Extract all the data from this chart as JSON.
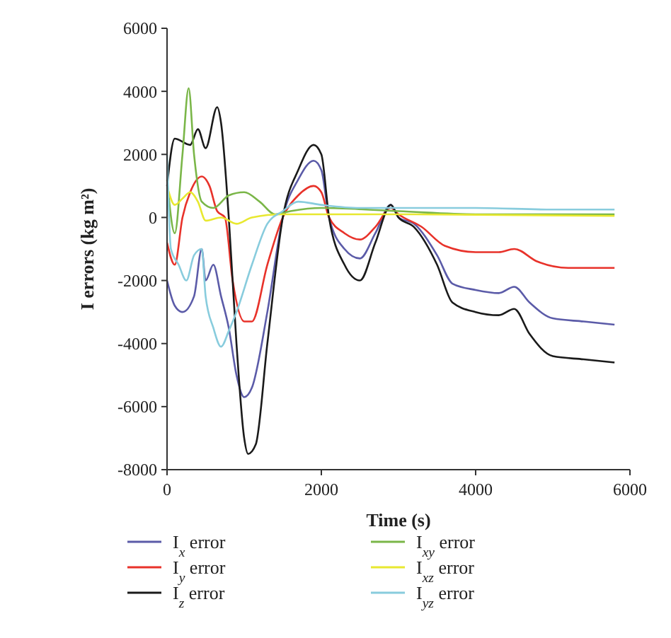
{
  "chart_data": {
    "type": "line",
    "xlabel": "Time (s)",
    "ylabel": "I errors (kg m²)",
    "xlim": [
      0,
      6000
    ],
    "xticks": [
      0,
      2000,
      4000,
      6000
    ],
    "ylim": [
      -8000,
      6000
    ],
    "yticks": [
      -8000,
      -6000,
      -4000,
      -2000,
      0,
      2000,
      4000,
      6000
    ],
    "grid": false,
    "legend": "bottom",
    "line_style": "solid",
    "series": [
      {
        "name": "I$_{x}$ error",
        "color": "#5b5ba8",
        "x": [
          0,
          100,
          200,
          350,
          450,
          500,
          600,
          700,
          800,
          900,
          1000,
          1100,
          1300,
          1500,
          1700,
          1900,
          2000,
          2100,
          2300,
          2500,
          2700,
          2900,
          3000,
          3200,
          3500,
          3700,
          4000,
          4300,
          4500,
          4700,
          5000,
          5400,
          5800
        ],
        "values": [
          -2000,
          -2800,
          -3000,
          -2500,
          -1000,
          -2000,
          -1500,
          -2500,
          -3500,
          -5000,
          -5700,
          -5400,
          -3000,
          0,
          1200,
          1800,
          1500,
          0,
          -1000,
          -1300,
          -500,
          400,
          0,
          -200,
          -1200,
          -2100,
          -2300,
          -2400,
          -2200,
          -2700,
          -3200,
          -3300,
          -3400
        ]
      },
      {
        "name": "I$_{y}$ error",
        "color": "#e8322a",
        "x": [
          0,
          100,
          200,
          300,
          450,
          550,
          650,
          750,
          850,
          1000,
          1100,
          1300,
          1500,
          1700,
          1900,
          2000,
          2100,
          2300,
          2500,
          2700,
          2900,
          3000,
          3300,
          3600,
          4000,
          4300,
          4500,
          4800,
          5200,
          5800
        ],
        "values": [
          -800,
          -1500,
          0,
          800,
          1300,
          1000,
          200,
          0,
          -2000,
          -3300,
          -3300,
          -1500,
          0,
          700,
          1000,
          800,
          0,
          -500,
          -700,
          -300,
          300,
          100,
          -300,
          -900,
          -1100,
          -1100,
          -1000,
          -1400,
          -1600,
          -1600
        ]
      },
      {
        "name": "I$_{z}$ error",
        "color": "#1a1a1a",
        "x": [
          0,
          100,
          300,
          400,
          500,
          650,
          700,
          800,
          900,
          1000,
          1050,
          1150,
          1300,
          1500,
          1700,
          1900,
          2000,
          2100,
          2300,
          2500,
          2700,
          2900,
          3000,
          3200,
          3500,
          3700,
          4000,
          4300,
          4500,
          4700,
          5000,
          5400,
          5800
        ],
        "values": [
          1000,
          2500,
          2300,
          2800,
          2200,
          3500,
          3000,
          0,
          -4000,
          -7000,
          -7500,
          -7200,
          -4000,
          0,
          1500,
          2300,
          2000,
          0,
          -1500,
          -2000,
          -800,
          400,
          0,
          -300,
          -1500,
          -2700,
          -3000,
          -3100,
          -2900,
          -3700,
          -4400,
          -4500,
          -4600
        ]
      },
      {
        "name": "I$_{xy}$ error",
        "color": "#7ab648",
        "x": [
          0,
          100,
          200,
          280,
          350,
          450,
          600,
          800,
          1000,
          1200,
          1400,
          1600,
          2000,
          3000,
          4000,
          5800
        ],
        "values": [
          1200,
          -500,
          2000,
          4100,
          2000,
          500,
          300,
          700,
          800,
          500,
          100,
          200,
          300,
          200,
          100,
          100
        ]
      },
      {
        "name": "I$_{xz}$ error",
        "color": "#e8e830",
        "x": [
          0,
          100,
          200,
          300,
          400,
          500,
          700,
          900,
          1100,
          1500,
          2000,
          3000,
          5800
        ],
        "values": [
          1000,
          400,
          600,
          800,
          500,
          -100,
          0,
          -200,
          0,
          100,
          100,
          100,
          50
        ]
      },
      {
        "name": "I$_{yz}$ error",
        "color": "#88ccdd",
        "x": [
          0,
          50,
          150,
          250,
          350,
          450,
          500,
          600,
          700,
          800,
          900,
          1100,
          1300,
          1500,
          1700,
          2000,
          2500,
          3000,
          4000,
          5000,
          5800
        ],
        "values": [
          2000,
          -1000,
          -1500,
          -2000,
          -1200,
          -1000,
          -2500,
          -3500,
          -4100,
          -3600,
          -3000,
          -1500,
          -200,
          200,
          500,
          400,
          300,
          300,
          300,
          250,
          250
        ]
      }
    ]
  }
}
